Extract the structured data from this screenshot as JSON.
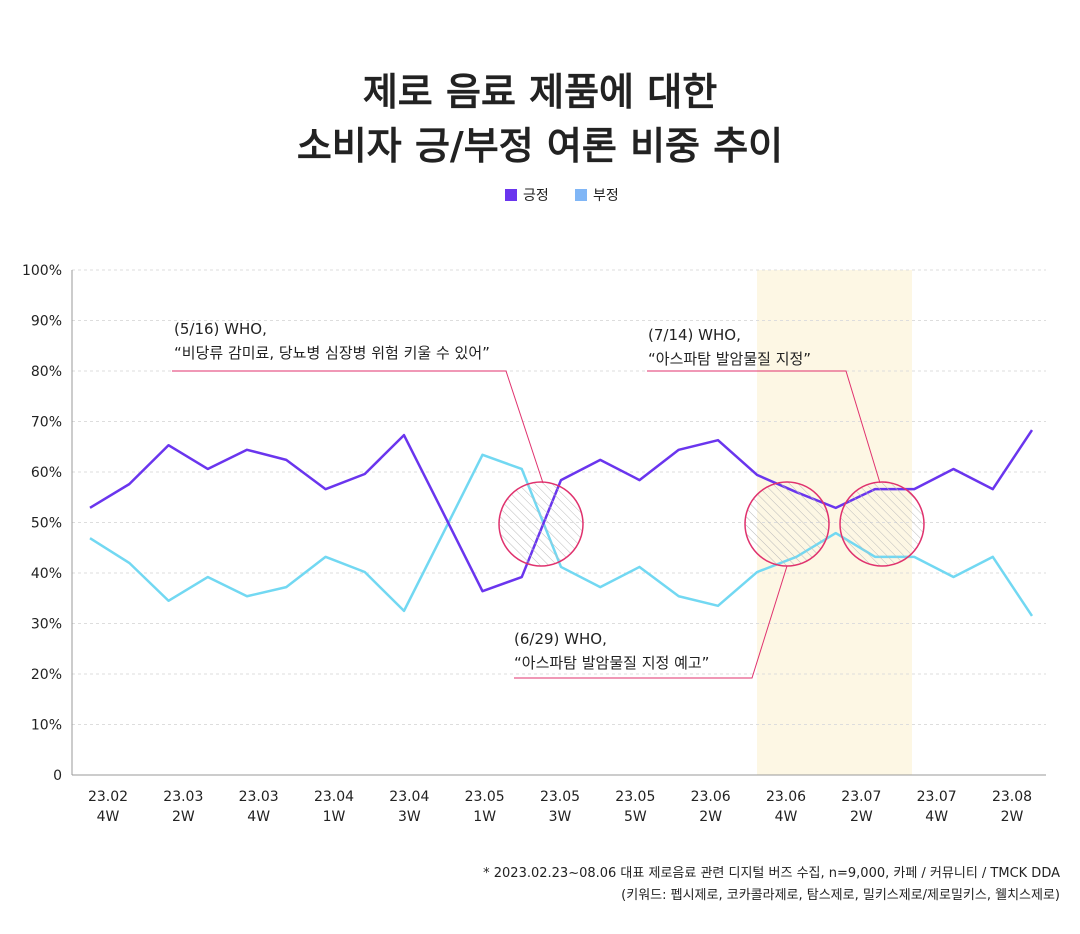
{
  "chart_data": {
    "type": "line",
    "title": [
      "제로 음료 제품에 대한",
      "소비자 긍/부정 여론 비중 추이"
    ],
    "categories": [
      "23.02 4W",
      null,
      "23.03 2W",
      null,
      "23.03 4W",
      null,
      "23.04 1W",
      null,
      "23.04 3W",
      null,
      "23.05 1W",
      null,
      "23.05 3W",
      null,
      "23.05 5W",
      null,
      "23.06 2W",
      null,
      "23.06 4W",
      null,
      "23.07 2W",
      null,
      "23.07 4W",
      null,
      "23.08 2W"
    ],
    "series": [
      {
        "name": "긍정",
        "color": "#6a35ee",
        "legend_color": "#6a35ee",
        "values": [
          52.9,
          57.6,
          65.3,
          60.6,
          64.4,
          62.4,
          56.6,
          59.6,
          67.3,
          51.9,
          36.4,
          39.2,
          58.4,
          62.4,
          58.4,
          64.4,
          66.3,
          59.4,
          56.0,
          52.9,
          56.6,
          56.6,
          60.6,
          56.6,
          68.3
        ]
      },
      {
        "name": "부정",
        "color": "#72d8f2",
        "legend_color": "#80b6f6",
        "values": [
          46.9,
          42.0,
          34.5,
          39.2,
          35.4,
          37.2,
          43.2,
          40.2,
          32.5,
          47.9,
          63.4,
          60.6,
          41.2,
          37.2,
          41.2,
          35.4,
          33.5,
          40.2,
          43.2,
          47.9,
          43.2,
          43.2,
          39.2,
          43.2,
          31.5
        ]
      }
    ],
    "ylim": [
      0,
      100
    ],
    "yticks": [
      0,
      {
        "value": 10,
        "label": "10%"
      },
      {
        "value": 20,
        "label": "20%"
      },
      {
        "value": 30,
        "label": "30%"
      },
      {
        "value": 40,
        "label": "40%"
      },
      {
        "value": 50,
        "label": "50%"
      },
      {
        "value": 60,
        "label": "60%"
      },
      {
        "value": 70,
        "label": "70%"
      },
      {
        "value": 80,
        "label": "80%"
      },
      {
        "value": 90,
        "label": "90%"
      },
      {
        "value": 100,
        "label": "100%"
      }
    ],
    "grid": true,
    "annotations": [
      {
        "lines": [
          "(5/16) WHO,",
          "“비당류 감미료, 당뇨병 심장병 위험 키울 수 있어”"
        ]
      },
      {
        "lines": [
          "(7/14) WHO,",
          "“아스파탐 발암물질 지정”"
        ]
      },
      {
        "lines": [
          "(6/29) WHO,",
          "“아스파탐 발암물질 지정 예고”"
        ]
      }
    ],
    "footnote": [
      "* 2023.02.23~08.06 대표 제로음료 관련 디지털 버즈 수집, n=9,000, 카페 / 커뮤니티 / TMCK DDA",
      "(키워드: 펩시제로, 코카콜라제로, 탐스제로, 밀키스제로/제로밀키스, 웰치스제로)"
    ]
  }
}
